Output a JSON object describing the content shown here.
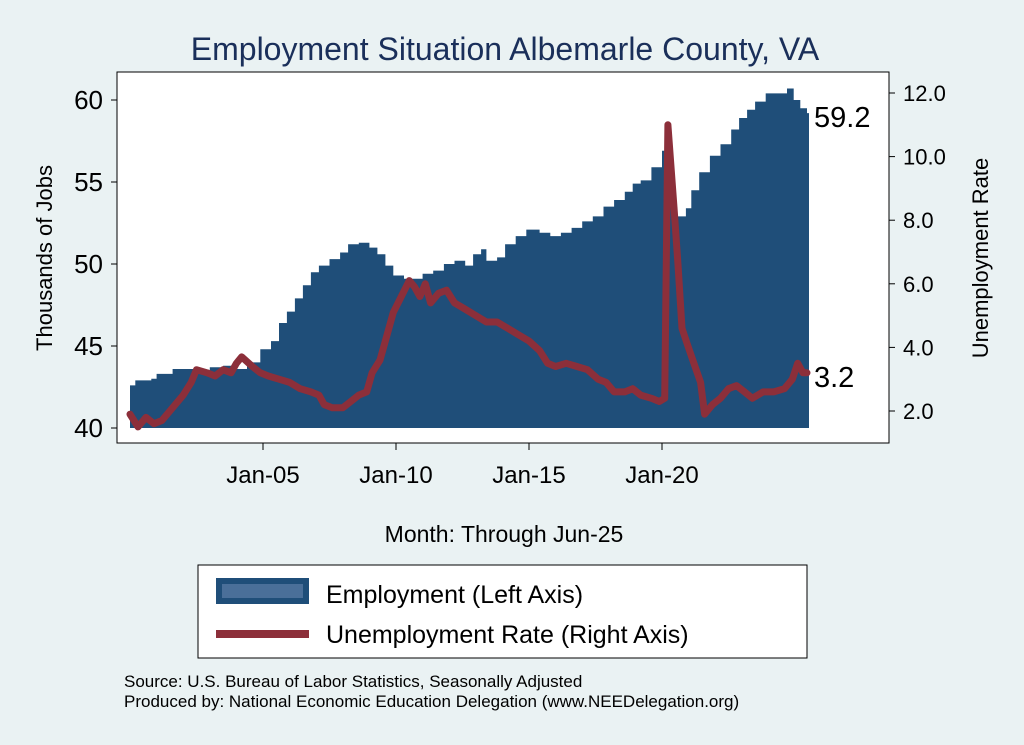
{
  "chart_data": {
    "type": "area+line",
    "title": "Employment Situation Albemarle  County, VA",
    "xlabel": "Month: Through Jun-25",
    "ylabel_left": "Thousands of Jobs",
    "ylabel_right": "Unemployment Rate",
    "ylim_left": [
      40,
      62
    ],
    "ylim_right": [
      1.0,
      12.5
    ],
    "xlim": [
      2000.0,
      2027.0
    ],
    "grid": false,
    "x_ticks": [
      {
        "value": 2005,
        "label": "Jan-05"
      },
      {
        "value": 2010,
        "label": "Jan-10"
      },
      {
        "value": 2015,
        "label": "Jan-15"
      },
      {
        "value": 2020,
        "label": "Jan-20"
      }
    ],
    "y_ticks_left": [
      40,
      45,
      50,
      55,
      60
    ],
    "y_ticks_right": [
      {
        "value": 2.0,
        "label": "2.0"
      },
      {
        "value": 4.0,
        "label": "4.0"
      },
      {
        "value": 6.0,
        "label": "6.0"
      },
      {
        "value": 8.0,
        "label": "8.0"
      },
      {
        "value": 10.0,
        "label": "10.0"
      },
      {
        "value": 12.0,
        "label": "12.0"
      }
    ],
    "end_labels": {
      "employment": "59.2",
      "unemployment": "3.2"
    },
    "series": [
      {
        "name": "Employment (Left Axis)",
        "axis": "left",
        "kind": "area",
        "color": "#1f4e79",
        "points": [
          [
            2000.0,
            42.6
          ],
          [
            2000.2,
            42.9
          ],
          [
            2000.8,
            43.0
          ],
          [
            2001.0,
            43.3
          ],
          [
            2001.6,
            43.6
          ],
          [
            2002.4,
            43.5
          ],
          [
            2003.0,
            43.7
          ],
          [
            2003.5,
            43.8
          ],
          [
            2004.0,
            43.6
          ],
          [
            2004.4,
            44.0
          ],
          [
            2004.9,
            44.8
          ],
          [
            2005.3,
            45.3
          ],
          [
            2005.6,
            46.4
          ],
          [
            2005.9,
            47.1
          ],
          [
            2006.2,
            47.9
          ],
          [
            2006.5,
            48.7
          ],
          [
            2006.8,
            49.5
          ],
          [
            2007.1,
            49.9
          ],
          [
            2007.5,
            50.3
          ],
          [
            2007.9,
            50.7
          ],
          [
            2008.2,
            51.2
          ],
          [
            2008.6,
            51.3
          ],
          [
            2009.0,
            51.0
          ],
          [
            2009.3,
            50.6
          ],
          [
            2009.6,
            49.9
          ],
          [
            2009.9,
            49.3
          ],
          [
            2010.3,
            49.1
          ],
          [
            2010.7,
            49.1
          ],
          [
            2011.0,
            49.4
          ],
          [
            2011.4,
            49.6
          ],
          [
            2011.8,
            50.0
          ],
          [
            2012.2,
            50.2
          ],
          [
            2012.6,
            49.9
          ],
          [
            2012.9,
            50.6
          ],
          [
            2013.2,
            50.9
          ],
          [
            2013.4,
            50.2
          ],
          [
            2013.8,
            50.4
          ],
          [
            2014.1,
            51.2
          ],
          [
            2014.5,
            51.7
          ],
          [
            2014.9,
            52.1
          ],
          [
            2015.4,
            51.9
          ],
          [
            2015.8,
            51.7
          ],
          [
            2016.2,
            51.9
          ],
          [
            2016.6,
            52.2
          ],
          [
            2017.0,
            52.6
          ],
          [
            2017.4,
            52.9
          ],
          [
            2017.8,
            53.5
          ],
          [
            2018.2,
            53.9
          ],
          [
            2018.6,
            54.4
          ],
          [
            2018.9,
            54.9
          ],
          [
            2019.2,
            55.1
          ],
          [
            2019.6,
            55.9
          ],
          [
            2020.0,
            56.9
          ],
          [
            2020.2,
            57.1
          ],
          [
            2020.32,
            54.9
          ],
          [
            2020.5,
            52.9
          ],
          [
            2020.9,
            53.4
          ],
          [
            2021.1,
            54.5
          ],
          [
            2021.4,
            55.6
          ],
          [
            2021.8,
            56.6
          ],
          [
            2022.2,
            57.3
          ],
          [
            2022.6,
            58.2
          ],
          [
            2022.9,
            58.9
          ],
          [
            2023.2,
            59.4
          ],
          [
            2023.5,
            59.9
          ],
          [
            2023.9,
            60.4
          ],
          [
            2024.3,
            60.4
          ],
          [
            2024.7,
            60.7
          ],
          [
            2024.95,
            60.0
          ],
          [
            2025.2,
            59.5
          ],
          [
            2025.45,
            59.2
          ]
        ]
      },
      {
        "name": "Unemployment Rate (Right Axis)",
        "axis": "right",
        "kind": "line",
        "color": "#8c2f3a",
        "points": [
          [
            2000.0,
            1.9
          ],
          [
            2000.3,
            1.5
          ],
          [
            2000.6,
            1.8
          ],
          [
            2000.9,
            1.6
          ],
          [
            2001.2,
            1.7
          ],
          [
            2001.6,
            2.1
          ],
          [
            2002.0,
            2.5
          ],
          [
            2002.3,
            2.9
          ],
          [
            2002.5,
            3.3
          ],
          [
            2002.9,
            3.2
          ],
          [
            2003.2,
            3.1
          ],
          [
            2003.5,
            3.3
          ],
          [
            2003.8,
            3.2
          ],
          [
            2004.0,
            3.5
          ],
          [
            2004.2,
            3.7
          ],
          [
            2004.6,
            3.4
          ],
          [
            2004.9,
            3.2
          ],
          [
            2005.2,
            3.1
          ],
          [
            2005.6,
            3.0
          ],
          [
            2006.0,
            2.9
          ],
          [
            2006.4,
            2.7
          ],
          [
            2006.8,
            2.6
          ],
          [
            2007.1,
            2.5
          ],
          [
            2007.3,
            2.2
          ],
          [
            2007.6,
            2.1
          ],
          [
            2008.0,
            2.1
          ],
          [
            2008.3,
            2.3
          ],
          [
            2008.6,
            2.5
          ],
          [
            2008.9,
            2.6
          ],
          [
            2009.1,
            3.2
          ],
          [
            2009.4,
            3.6
          ],
          [
            2009.7,
            4.5
          ],
          [
            2009.9,
            5.1
          ],
          [
            2010.2,
            5.6
          ],
          [
            2010.5,
            6.1
          ],
          [
            2010.7,
            5.9
          ],
          [
            2010.9,
            5.6
          ],
          [
            2011.1,
            6.0
          ],
          [
            2011.3,
            5.4
          ],
          [
            2011.6,
            5.7
          ],
          [
            2011.9,
            5.8
          ],
          [
            2012.2,
            5.4
          ],
          [
            2012.6,
            5.2
          ],
          [
            2013.0,
            5.0
          ],
          [
            2013.4,
            4.8
          ],
          [
            2013.8,
            4.8
          ],
          [
            2014.2,
            4.6
          ],
          [
            2014.6,
            4.4
          ],
          [
            2015.0,
            4.2
          ],
          [
            2015.4,
            3.9
          ],
          [
            2015.7,
            3.5
          ],
          [
            2016.0,
            3.4
          ],
          [
            2016.4,
            3.5
          ],
          [
            2016.8,
            3.4
          ],
          [
            2017.2,
            3.3
          ],
          [
            2017.6,
            3.0
          ],
          [
            2017.9,
            2.9
          ],
          [
            2018.2,
            2.6
          ],
          [
            2018.6,
            2.6
          ],
          [
            2018.9,
            2.7
          ],
          [
            2019.2,
            2.5
          ],
          [
            2019.6,
            2.4
          ],
          [
            2019.9,
            2.3
          ],
          [
            2020.1,
            2.4
          ],
          [
            2020.22,
            11.0
          ],
          [
            2020.45,
            8.4
          ],
          [
            2020.6,
            6.6
          ],
          [
            2020.75,
            4.6
          ],
          [
            2020.95,
            4.1
          ],
          [
            2021.2,
            3.5
          ],
          [
            2021.45,
            2.9
          ],
          [
            2021.6,
            1.9
          ],
          [
            2021.9,
            2.2
          ],
          [
            2022.2,
            2.4
          ],
          [
            2022.5,
            2.7
          ],
          [
            2022.8,
            2.8
          ],
          [
            2023.1,
            2.6
          ],
          [
            2023.4,
            2.4
          ],
          [
            2023.8,
            2.6
          ],
          [
            2024.2,
            2.6
          ],
          [
            2024.6,
            2.7
          ],
          [
            2024.9,
            3.0
          ],
          [
            2025.1,
            3.5
          ],
          [
            2025.3,
            3.2
          ],
          [
            2025.45,
            3.2
          ]
        ]
      }
    ]
  },
  "footer": {
    "source": "Source: U.S. Bureau of Labor Statistics, Seasonally Adjusted",
    "producer": "Produced by: National Economic Education Delegation (www.NEEDelegation.org)"
  }
}
